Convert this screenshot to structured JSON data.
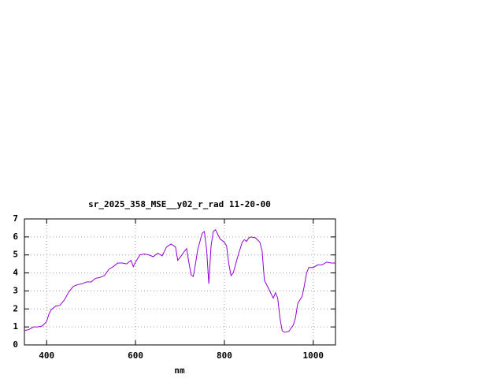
{
  "chart_data": {
    "type": "line",
    "title": "sr_2025_358_MSE__y02_r_rad 11-20-00",
    "x_label": "nm",
    "x": [
      350,
      360,
      370,
      380,
      390,
      400,
      405,
      410,
      420,
      430,
      440,
      450,
      460,
      470,
      480,
      490,
      500,
      510,
      520,
      530,
      540,
      550,
      560,
      570,
      580,
      590,
      595,
      600,
      610,
      620,
      630,
      640,
      650,
      660,
      670,
      680,
      690,
      695,
      700,
      710,
      715,
      720,
      725,
      730,
      735,
      740,
      750,
      755,
      760,
      765,
      770,
      775,
      780,
      790,
      800,
      805,
      810,
      815,
      820,
      830,
      840,
      845,
      850,
      855,
      860,
      870,
      880,
      885,
      890,
      900,
      910,
      915,
      920,
      925,
      930,
      935,
      945,
      955,
      960,
      965,
      970,
      975,
      980,
      985,
      990,
      1000,
      1010,
      1020,
      1030,
      1040,
      1050
    ],
    "series": [
      {
        "name": "sr_2025_358_MSE__y02_r_rad",
        "color": "#9400d3",
        "values": [
          0.8,
          0.85,
          1.0,
          1.0,
          1.05,
          1.3,
          1.7,
          1.95,
          2.15,
          2.2,
          2.5,
          2.95,
          3.25,
          3.35,
          3.4,
          3.5,
          3.5,
          3.7,
          3.75,
          3.85,
          4.2,
          4.35,
          4.55,
          4.55,
          4.5,
          4.7,
          4.35,
          4.6,
          5.0,
          5.05,
          5.0,
          4.9,
          5.1,
          4.95,
          5.45,
          5.6,
          5.45,
          4.7,
          4.85,
          5.2,
          5.35,
          4.6,
          3.9,
          3.8,
          4.5,
          5.3,
          6.2,
          6.3,
          5.3,
          3.4,
          5.5,
          6.3,
          6.4,
          5.9,
          5.7,
          5.5,
          4.5,
          3.85,
          4.0,
          4.9,
          5.7,
          5.85,
          5.75,
          5.95,
          6.0,
          5.95,
          5.7,
          5.2,
          3.6,
          3.1,
          2.6,
          2.9,
          2.6,
          1.5,
          0.8,
          0.7,
          0.75,
          1.1,
          1.5,
          2.3,
          2.5,
          2.7,
          3.3,
          4.0,
          4.3,
          4.3,
          4.45,
          4.45,
          4.6,
          4.55,
          4.55
        ]
      }
    ],
    "xlim": [
      350,
      1050
    ],
    "xticks": [
      400,
      600,
      800,
      1000
    ],
    "ylim": [
      0,
      7
    ],
    "yticks": [
      0,
      1,
      2,
      3,
      4,
      5,
      6,
      7
    ],
    "grid": true
  }
}
